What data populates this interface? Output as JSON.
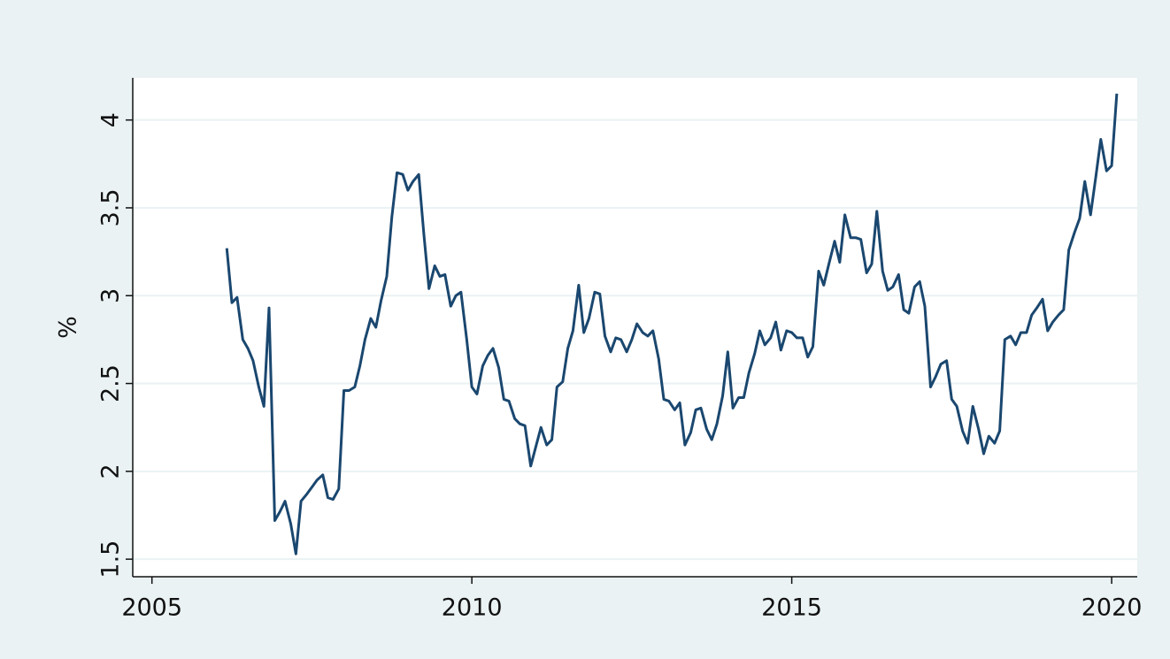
{
  "chart_data": {
    "type": "line",
    "ylabel": "%",
    "xlim": [
      2004.7,
      2020.4
    ],
    "xticks": [
      2005,
      2010,
      2015,
      2020
    ],
    "ylim": [
      1.4,
      4.24
    ],
    "yticks": [
      1.5,
      2,
      2.5,
      3,
      3.5,
      4
    ],
    "grid": true,
    "x": [
      2006.17,
      2006.25,
      2006.33,
      2006.42,
      2006.5,
      2006.58,
      2006.67,
      2006.75,
      2006.83,
      2006.92,
      2007,
      2007.08,
      2007.17,
      2007.25,
      2007.33,
      2007.42,
      2007.5,
      2007.58,
      2007.67,
      2007.75,
      2007.83,
      2007.92,
      2008,
      2008.08,
      2008.17,
      2008.25,
      2008.33,
      2008.42,
      2008.5,
      2008.58,
      2008.67,
      2008.75,
      2008.83,
      2008.92,
      2009,
      2009.08,
      2009.17,
      2009.25,
      2009.33,
      2009.42,
      2009.5,
      2009.58,
      2009.67,
      2009.75,
      2009.83,
      2009.92,
      2010,
      2010.08,
      2010.17,
      2010.25,
      2010.33,
      2010.42,
      2010.5,
      2010.58,
      2010.67,
      2010.75,
      2010.83,
      2010.92,
      2011,
      2011.08,
      2011.17,
      2011.25,
      2011.33,
      2011.42,
      2011.5,
      2011.58,
      2011.67,
      2011.75,
      2011.83,
      2011.92,
      2012,
      2012.08,
      2012.17,
      2012.25,
      2012.33,
      2012.42,
      2012.5,
      2012.58,
      2012.67,
      2012.75,
      2012.83,
      2012.92,
      2013,
      2013.08,
      2013.17,
      2013.25,
      2013.33,
      2013.42,
      2013.5,
      2013.58,
      2013.67,
      2013.75,
      2013.83,
      2013.92,
      2014,
      2014.08,
      2014.17,
      2014.25,
      2014.33,
      2014.42,
      2014.5,
      2014.58,
      2014.67,
      2014.75,
      2014.83,
      2014.92,
      2015,
      2015.08,
      2015.17,
      2015.25,
      2015.33,
      2015.42,
      2015.5,
      2015.58,
      2015.67,
      2015.75,
      2015.83,
      2015.92,
      2016,
      2016.08,
      2016.17,
      2016.25,
      2016.33,
      2016.42,
      2016.5,
      2016.58,
      2016.67,
      2016.75,
      2016.83,
      2016.92,
      2017,
      2017.08,
      2017.17,
      2017.25,
      2017.33,
      2017.42,
      2017.5,
      2017.58,
      2017.67,
      2017.75,
      2017.83,
      2017.92,
      2018,
      2018.08,
      2018.17,
      2018.25,
      2018.33,
      2018.42,
      2018.5,
      2018.58,
      2018.67,
      2018.75,
      2018.83,
      2018.92,
      2019,
      2019.08,
      2019.17,
      2019.25,
      2019.33,
      2019.42,
      2019.5,
      2019.58,
      2019.67,
      2019.75,
      2019.83,
      2019.92,
      2020,
      2020.08
    ],
    "series": [
      {
        "color": "#1a476f",
        "values": [
          3.27,
          2.96,
          2.99,
          2.75,
          2.7,
          2.63,
          2.48,
          2.37,
          2.93,
          1.72,
          1.77,
          1.83,
          1.7,
          1.53,
          1.83,
          1.87,
          1.91,
          1.95,
          1.98,
          1.85,
          1.84,
          1.9,
          2.46,
          2.46,
          2.48,
          2.6,
          2.75,
          2.87,
          2.82,
          2.97,
          3.11,
          3.45,
          3.7,
          3.69,
          3.6,
          3.65,
          3.69,
          3.35,
          3.04,
          3.17,
          3.11,
          3.12,
          2.94,
          3.0,
          3.02,
          2.75,
          2.48,
          2.44,
          2.6,
          2.66,
          2.7,
          2.59,
          2.41,
          2.4,
          2.3,
          2.27,
          2.26,
          2.03,
          2.14,
          2.25,
          2.15,
          2.18,
          2.48,
          2.51,
          2.7,
          2.8,
          3.06,
          2.79,
          2.87,
          3.02,
          3.01,
          2.77,
          2.68,
          2.76,
          2.75,
          2.68,
          2.75,
          2.84,
          2.79,
          2.77,
          2.8,
          2.64,
          2.41,
          2.4,
          2.35,
          2.39,
          2.15,
          2.22,
          2.35,
          2.36,
          2.24,
          2.18,
          2.27,
          2.43,
          2.68,
          2.36,
          2.42,
          2.42,
          2.56,
          2.67,
          2.8,
          2.72,
          2.76,
          2.85,
          2.69,
          2.8,
          2.79,
          2.76,
          2.76,
          2.65,
          2.71,
          3.14,
          3.06,
          3.18,
          3.31,
          3.19,
          3.46,
          3.33,
          3.33,
          3.32,
          3.13,
          3.18,
          3.48,
          3.14,
          3.03,
          3.05,
          3.12,
          2.92,
          2.9,
          3.05,
          3.08,
          2.94,
          2.48,
          2.54,
          2.61,
          2.63,
          2.41,
          2.37,
          2.23,
          2.16,
          2.37,
          2.24,
          2.1,
          2.2,
          2.16,
          2.23,
          2.75,
          2.77,
          2.72,
          2.79,
          2.79,
          2.89,
          2.93,
          2.98,
          2.8,
          2.85,
          2.89,
          2.92,
          3.26,
          3.36,
          3.44,
          3.65,
          3.46,
          3.67,
          3.89,
          3.71,
          3.74,
          4.15
        ]
      }
    ]
  }
}
